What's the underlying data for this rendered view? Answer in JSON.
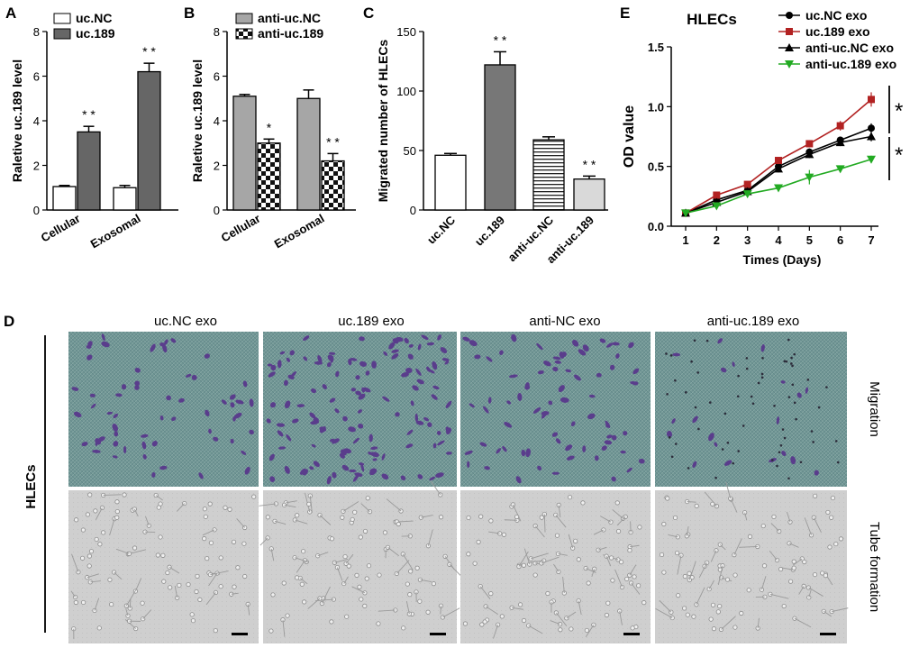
{
  "panels": {
    "A": "A",
    "B": "B",
    "C": "C",
    "D": "D",
    "E": "E"
  },
  "chart_data": [
    {
      "id": "A",
      "type": "bar",
      "ylabel": "Raletive uc.189  level",
      "ylim": [
        0,
        8
      ],
      "yticks": [
        "0",
        "2",
        "4",
        "6",
        "8"
      ],
      "categories": [
        "Cellular",
        "Exosomal"
      ],
      "series": [
        {
          "name": "uc.NC",
          "values": [
            1.05,
            1.0
          ],
          "errors": [
            0.05,
            0.1
          ],
          "color": "#ffffff"
        },
        {
          "name": "uc.189",
          "values": [
            3.5,
            6.2
          ],
          "errors": [
            0.25,
            0.38
          ],
          "color": "#666666"
        }
      ],
      "annotations": [
        {
          "series": 1,
          "category": 0,
          "text": "* *"
        },
        {
          "series": 1,
          "category": 1,
          "text": "* *"
        }
      ]
    },
    {
      "id": "B",
      "type": "bar",
      "ylabel": "Raletive uc.189  level",
      "ylim": [
        0,
        8
      ],
      "yticks": [
        "0",
        "2",
        "4",
        "6",
        "8"
      ],
      "categories": [
        "Cellular",
        "Exosomal"
      ],
      "series": [
        {
          "name": "anti-uc.NC",
          "values": [
            5.1,
            5.0
          ],
          "errors": [
            0.08,
            0.38
          ],
          "color": "#a6a6a6"
        },
        {
          "name": "anti-uc.189",
          "values": [
            3.0,
            2.2
          ],
          "errors": [
            0.18,
            0.33
          ],
          "color": "checker"
        }
      ],
      "annotations": [
        {
          "series": 1,
          "category": 0,
          "text": "*"
        },
        {
          "series": 1,
          "category": 1,
          "text": "* *"
        }
      ]
    },
    {
      "id": "C",
      "type": "bar",
      "ylabel": "Migrated number of HLECs",
      "ylim": [
        0,
        150
      ],
      "yticks": [
        "0",
        "50",
        "100",
        "150"
      ],
      "categories": [
        "uc.NC",
        "uc.189",
        "anti-uc.NC",
        "anti-uc.189"
      ],
      "values": [
        46,
        122,
        59,
        26
      ],
      "errors": [
        1.5,
        11,
        2.5,
        2.5
      ],
      "fills": [
        "#ffffff",
        "#777777",
        "stripes",
        "#d9d9d9"
      ],
      "annotations": [
        {
          "category": 1,
          "text": "* *"
        },
        {
          "category": 3,
          "text": "* *"
        }
      ]
    },
    {
      "id": "E",
      "type": "line",
      "title": "HLECs",
      "xlabel": "Times (Days)",
      "ylabel": "OD value",
      "x": [
        1,
        2,
        3,
        4,
        5,
        6,
        7
      ],
      "xticks": [
        "1",
        "2",
        "3",
        "4",
        "5",
        "6",
        "7"
      ],
      "ylim": [
        0,
        1.5
      ],
      "yticks": [
        "0.0",
        "0.5",
        "1.0",
        "1.5"
      ],
      "series": [
        {
          "name": "uc.NC exo",
          "color": "#000000",
          "marker": "circle",
          "values": [
            0.11,
            0.22,
            0.3,
            0.5,
            0.62,
            0.72,
            0.82
          ],
          "errors": [
            0.01,
            0.02,
            0.02,
            0.03,
            0.03,
            0.03,
            0.04
          ]
        },
        {
          "name": "uc.189 exo",
          "color": "#b22222",
          "marker": "square",
          "values": [
            0.11,
            0.26,
            0.35,
            0.55,
            0.69,
            0.84,
            1.06
          ],
          "errors": [
            0.01,
            0.02,
            0.02,
            0.03,
            0.03,
            0.04,
            0.06
          ]
        },
        {
          "name": "anti-uc.NC exo",
          "color": "#000000",
          "marker": "triangle-up",
          "values": [
            0.11,
            0.2,
            0.29,
            0.48,
            0.6,
            0.7,
            0.75
          ],
          "errors": [
            0.01,
            0.02,
            0.02,
            0.03,
            0.03,
            0.03,
            0.04
          ]
        },
        {
          "name": "anti-uc.189 exo",
          "color": "#22aa22",
          "marker": "triangle-down",
          "values": [
            0.11,
            0.17,
            0.27,
            0.32,
            0.41,
            0.48,
            0.56
          ],
          "errors": [
            0.01,
            0.02,
            0.02,
            0.02,
            0.06,
            0.02,
            0.03
          ]
        }
      ],
      "significance": [
        "*",
        "*"
      ]
    }
  ],
  "panel_d": {
    "columns": [
      "uc.NC exo",
      "uc.189 exo",
      "anti-NC exo",
      "anti-uc.189 exo"
    ],
    "row_group": "HLECs",
    "rows": [
      "Migration",
      "Tube formation"
    ],
    "migration_cell_counts": [
      60,
      130,
      75,
      20
    ]
  }
}
